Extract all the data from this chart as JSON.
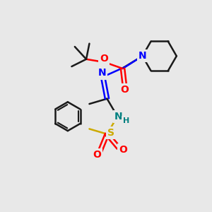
{
  "bg_color": "#e8e8e8",
  "bond_color": "#1a1a1a",
  "N_color": "#0000ff",
  "O_color": "#ff0000",
  "S_color": "#ccaa00",
  "NH_color": "#008080",
  "lw": 1.8,
  "figsize": [
    3.0,
    3.0
  ],
  "dpi": 100,
  "xlim": [
    0,
    10
  ],
  "ylim": [
    0,
    10
  ]
}
